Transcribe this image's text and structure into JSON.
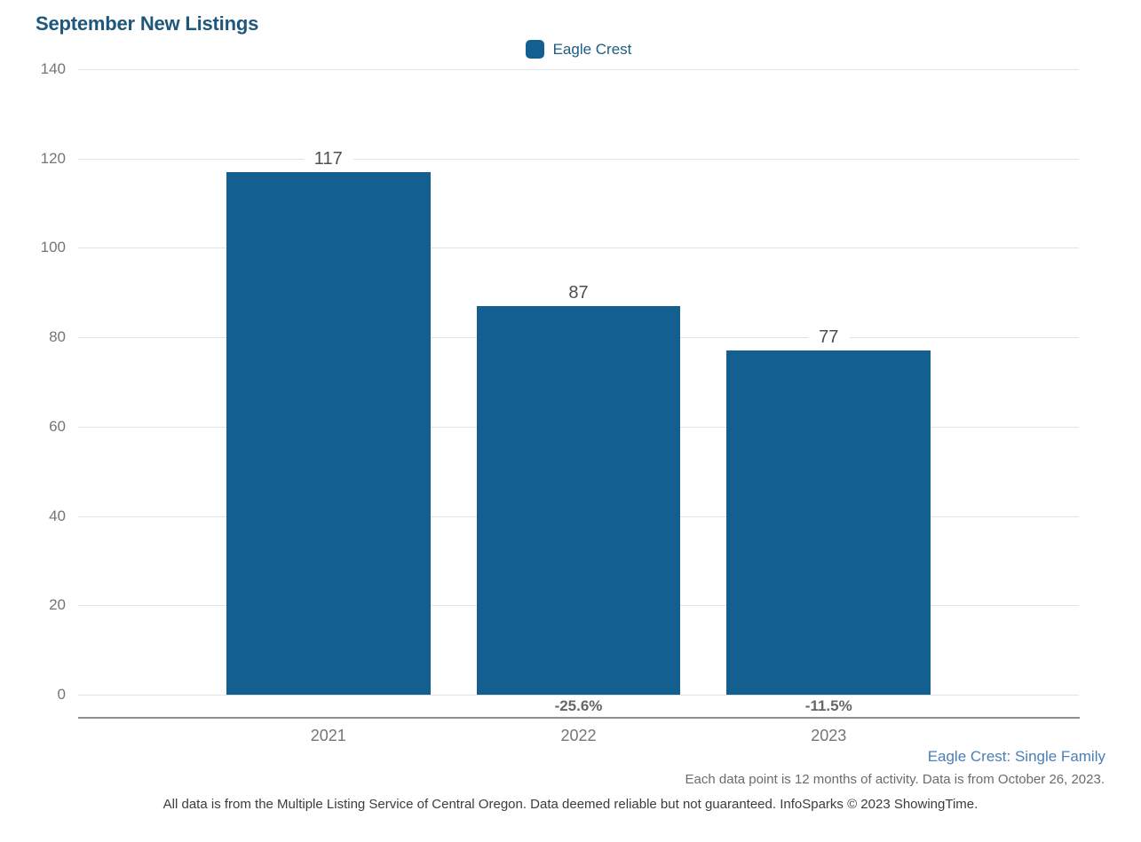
{
  "title": "September New Listings",
  "legend": {
    "label": "Eagle Crest"
  },
  "chart_data": {
    "type": "bar",
    "title": "September New Listings",
    "categories": [
      "2021",
      "2022",
      "2023"
    ],
    "values": [
      117,
      87,
      77
    ],
    "value_labels": [
      "117",
      "87",
      "77"
    ],
    "pct_change_labels": [
      "",
      "-25.6%",
      "-11.5%"
    ],
    "xlabel": "",
    "ylabel": "",
    "ylim": [
      0,
      140
    ],
    "ytick_step": 20,
    "ytick_labels": [
      "0",
      "20",
      "40",
      "60",
      "80",
      "100",
      "120",
      "140"
    ],
    "grid": true,
    "legend_entries": [
      "Eagle Crest"
    ],
    "legend_position": "top-center",
    "bar_color": "#135f90"
  },
  "footer": {
    "series_note": "Eagle Crest: Single Family",
    "data_note": "Each data point is 12 months of activity. Data is from October 26, 2023.",
    "disclaimer": "All data is from the Multiple Listing Service of Central Oregon. Data deemed reliable but not guaranteed. InfoSparks © 2023 ShowingTime."
  },
  "colors": {
    "bar": "#135f90",
    "title_text": "#1f567c",
    "legend_text": "#1d5c85",
    "series_note_text": "#4a7fb5",
    "axis_text": "#757575",
    "value_label_text": "#4f4f4f",
    "pct_label_text": "#666666",
    "gridline": "#e3e3e3",
    "axis_line": "#8f8f8f",
    "background": "#ffffff"
  }
}
